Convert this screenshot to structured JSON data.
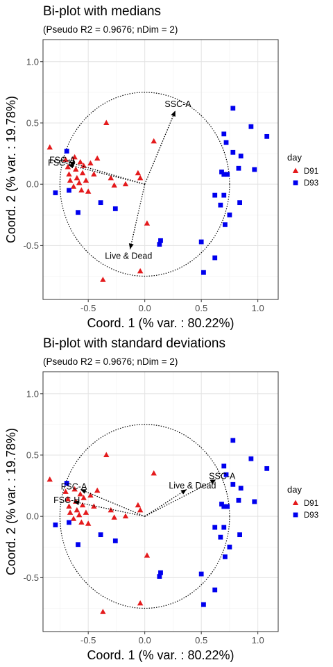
{
  "chart_data": [
    {
      "type": "scatter",
      "title": "Bi-plot with medians",
      "subtitle": "(Pseudo R2 = 0.9676; nDim = 2)",
      "xlabel": "Coord. 1 (% var. : 80.22%)",
      "ylabel": "Coord. 2 (% var. : 19.78%)",
      "xlim": [
        -0.9,
        1.18
      ],
      "ylim": [
        -0.94,
        1.18
      ],
      "xticks": [
        -0.5,
        0.0,
        0.5,
        1.0
      ],
      "xtick_labels": [
        "-0.5",
        "0.0",
        "0.5",
        "1.0"
      ],
      "yticks": [
        -0.5,
        0.0,
        0.5,
        1.0
      ],
      "ytick_labels": [
        "-0.5",
        "0.0",
        "0.5",
        "1.0"
      ],
      "grid": true,
      "circle_radius": 0.75,
      "legend": {
        "title": "day",
        "position": "right",
        "entries": [
          "D91",
          "D93"
        ]
      },
      "colors": {
        "D91": "#e41a1c",
        "D93": "#0000ee"
      },
      "series": [
        {
          "name": "D91",
          "marker": "triangle",
          "points": [
            [
              -0.84,
              0.3
            ],
            [
              -0.7,
              0.2
            ],
            [
              -0.68,
              0.14
            ],
            [
              -0.67,
              0.08
            ],
            [
              -0.66,
              0.03
            ],
            [
              -0.63,
              -0.02
            ],
            [
              -0.62,
              0.22
            ],
            [
              -0.61,
              0.12
            ],
            [
              -0.6,
              0.05
            ],
            [
              -0.58,
              0.01
            ],
            [
              -0.57,
              0.18
            ],
            [
              -0.56,
              -0.05
            ],
            [
              -0.55,
              0.09
            ],
            [
              -0.54,
              0.15
            ],
            [
              -0.52,
              0.03
            ],
            [
              -0.5,
              -0.06
            ],
            [
              -0.48,
              0.17
            ],
            [
              -0.45,
              0.08
            ],
            [
              -0.42,
              0.21
            ],
            [
              -0.34,
              0.5
            ],
            [
              -0.3,
              0.05
            ],
            [
              -0.27,
              -0.01
            ],
            [
              -0.17,
              0.0
            ],
            [
              -0.06,
              0.09
            ],
            [
              -0.04,
              0.05
            ],
            [
              0.08,
              0.35
            ],
            [
              0.02,
              -0.32
            ],
            [
              -0.04,
              -0.71
            ],
            [
              -0.37,
              -0.78
            ]
          ]
        },
        {
          "name": "D93",
          "marker": "square",
          "points": [
            [
              -0.69,
              0.27
            ],
            [
              -0.79,
              -0.07
            ],
            [
              -0.67,
              -0.05
            ],
            [
              -0.59,
              -0.23
            ],
            [
              -0.39,
              -0.15
            ],
            [
              -0.26,
              -0.2
            ],
            [
              0.14,
              -0.46
            ],
            [
              0.13,
              -0.49
            ],
            [
              0.5,
              -0.47
            ],
            [
              0.52,
              -0.72
            ],
            [
              0.62,
              -0.6
            ],
            [
              0.62,
              -0.09
            ],
            [
              0.67,
              -0.17
            ],
            [
              0.71,
              -0.33
            ],
            [
              0.75,
              -0.25
            ],
            [
              0.84,
              -0.15
            ],
            [
              0.7,
              -0.09
            ],
            [
              0.68,
              0.1
            ],
            [
              0.7,
              0.08
            ],
            [
              0.73,
              0.08
            ],
            [
              0.72,
              0.34
            ],
            [
              0.7,
              0.41
            ],
            [
              0.78,
              0.26
            ],
            [
              0.78,
              0.62
            ],
            [
              0.83,
              0.13
            ],
            [
              0.85,
              0.23
            ],
            [
              0.94,
              0.47
            ],
            [
              0.97,
              0.12
            ],
            [
              1.08,
              0.39
            ]
          ]
        }
      ],
      "arrows": [
        {
          "label": "SSC-A",
          "x": 0.27,
          "y": 0.6
        },
        {
          "label": "FSC-A",
          "x": -0.67,
          "y": 0.18
        },
        {
          "label": "FSC-H",
          "x": -0.68,
          "y": 0.16
        },
        {
          "label": "Live & Dead",
          "x": -0.13,
          "y": -0.53
        }
      ]
    },
    {
      "type": "scatter",
      "title": "Bi-plot with standard deviations",
      "subtitle": "(Pseudo R2 = 0.9676; nDim = 2)",
      "xlabel": "Coord. 1 (% var. : 80.22%)",
      "ylabel": "Coord. 2 (% var. : 19.78%)",
      "xlim": [
        -0.9,
        1.18
      ],
      "ylim": [
        -0.94,
        1.18
      ],
      "xticks": [
        -0.5,
        0.0,
        0.5,
        1.0
      ],
      "xtick_labels": [
        "-0.5",
        "0.0",
        "0.5",
        "1.0"
      ],
      "yticks": [
        -0.5,
        0.0,
        0.5,
        1.0
      ],
      "ytick_labels": [
        "-0.5",
        "0.0",
        "0.5",
        "1.0"
      ],
      "grid": true,
      "circle_radius": 0.75,
      "legend": {
        "title": "day",
        "position": "right",
        "entries": [
          "D91",
          "D93"
        ]
      },
      "colors": {
        "D91": "#e41a1c",
        "D93": "#0000ee"
      },
      "series": [
        {
          "name": "D91",
          "marker": "triangle",
          "points": [
            [
              -0.84,
              0.3
            ],
            [
              -0.7,
              0.2
            ],
            [
              -0.68,
              0.14
            ],
            [
              -0.67,
              0.08
            ],
            [
              -0.66,
              0.03
            ],
            [
              -0.63,
              -0.02
            ],
            [
              -0.62,
              0.22
            ],
            [
              -0.61,
              0.12
            ],
            [
              -0.6,
              0.05
            ],
            [
              -0.58,
              0.01
            ],
            [
              -0.57,
              0.18
            ],
            [
              -0.56,
              -0.05
            ],
            [
              -0.55,
              0.09
            ],
            [
              -0.54,
              0.15
            ],
            [
              -0.52,
              0.03
            ],
            [
              -0.5,
              -0.06
            ],
            [
              -0.48,
              0.17
            ],
            [
              -0.45,
              0.08
            ],
            [
              -0.42,
              0.21
            ],
            [
              -0.34,
              0.5
            ],
            [
              -0.3,
              0.05
            ],
            [
              -0.27,
              -0.01
            ],
            [
              -0.17,
              0.0
            ],
            [
              -0.06,
              0.09
            ],
            [
              -0.04,
              0.05
            ],
            [
              0.08,
              0.35
            ],
            [
              0.02,
              -0.32
            ],
            [
              -0.04,
              -0.71
            ],
            [
              -0.37,
              -0.78
            ]
          ]
        },
        {
          "name": "D93",
          "marker": "square",
          "points": [
            [
              -0.69,
              0.27
            ],
            [
              -0.79,
              -0.07
            ],
            [
              -0.67,
              -0.05
            ],
            [
              -0.59,
              -0.23
            ],
            [
              -0.39,
              -0.15
            ],
            [
              -0.26,
              -0.2
            ],
            [
              0.14,
              -0.46
            ],
            [
              0.13,
              -0.49
            ],
            [
              0.5,
              -0.47
            ],
            [
              0.52,
              -0.72
            ],
            [
              0.62,
              -0.6
            ],
            [
              0.62,
              -0.09
            ],
            [
              0.67,
              -0.17
            ],
            [
              0.71,
              -0.33
            ],
            [
              0.75,
              -0.25
            ],
            [
              0.84,
              -0.15
            ],
            [
              0.7,
              -0.09
            ],
            [
              0.68,
              0.1
            ],
            [
              0.7,
              0.08
            ],
            [
              0.73,
              0.08
            ],
            [
              0.72,
              0.34
            ],
            [
              0.7,
              0.41
            ],
            [
              0.78,
              0.26
            ],
            [
              0.78,
              0.62
            ],
            [
              0.83,
              0.13
            ],
            [
              0.85,
              0.23
            ],
            [
              0.94,
              0.47
            ],
            [
              0.97,
              0.12
            ],
            [
              1.08,
              0.39
            ]
          ]
        }
      ],
      "arrows": [
        {
          "label": "SSC-A",
          "x": 0.63,
          "y": 0.3
        },
        {
          "label": "Live & Dead",
          "x": 0.37,
          "y": 0.22
        },
        {
          "label": "FSC-A",
          "x": -0.57,
          "y": 0.22
        },
        {
          "label": "FSC-H",
          "x": -0.63,
          "y": 0.12
        }
      ]
    }
  ]
}
